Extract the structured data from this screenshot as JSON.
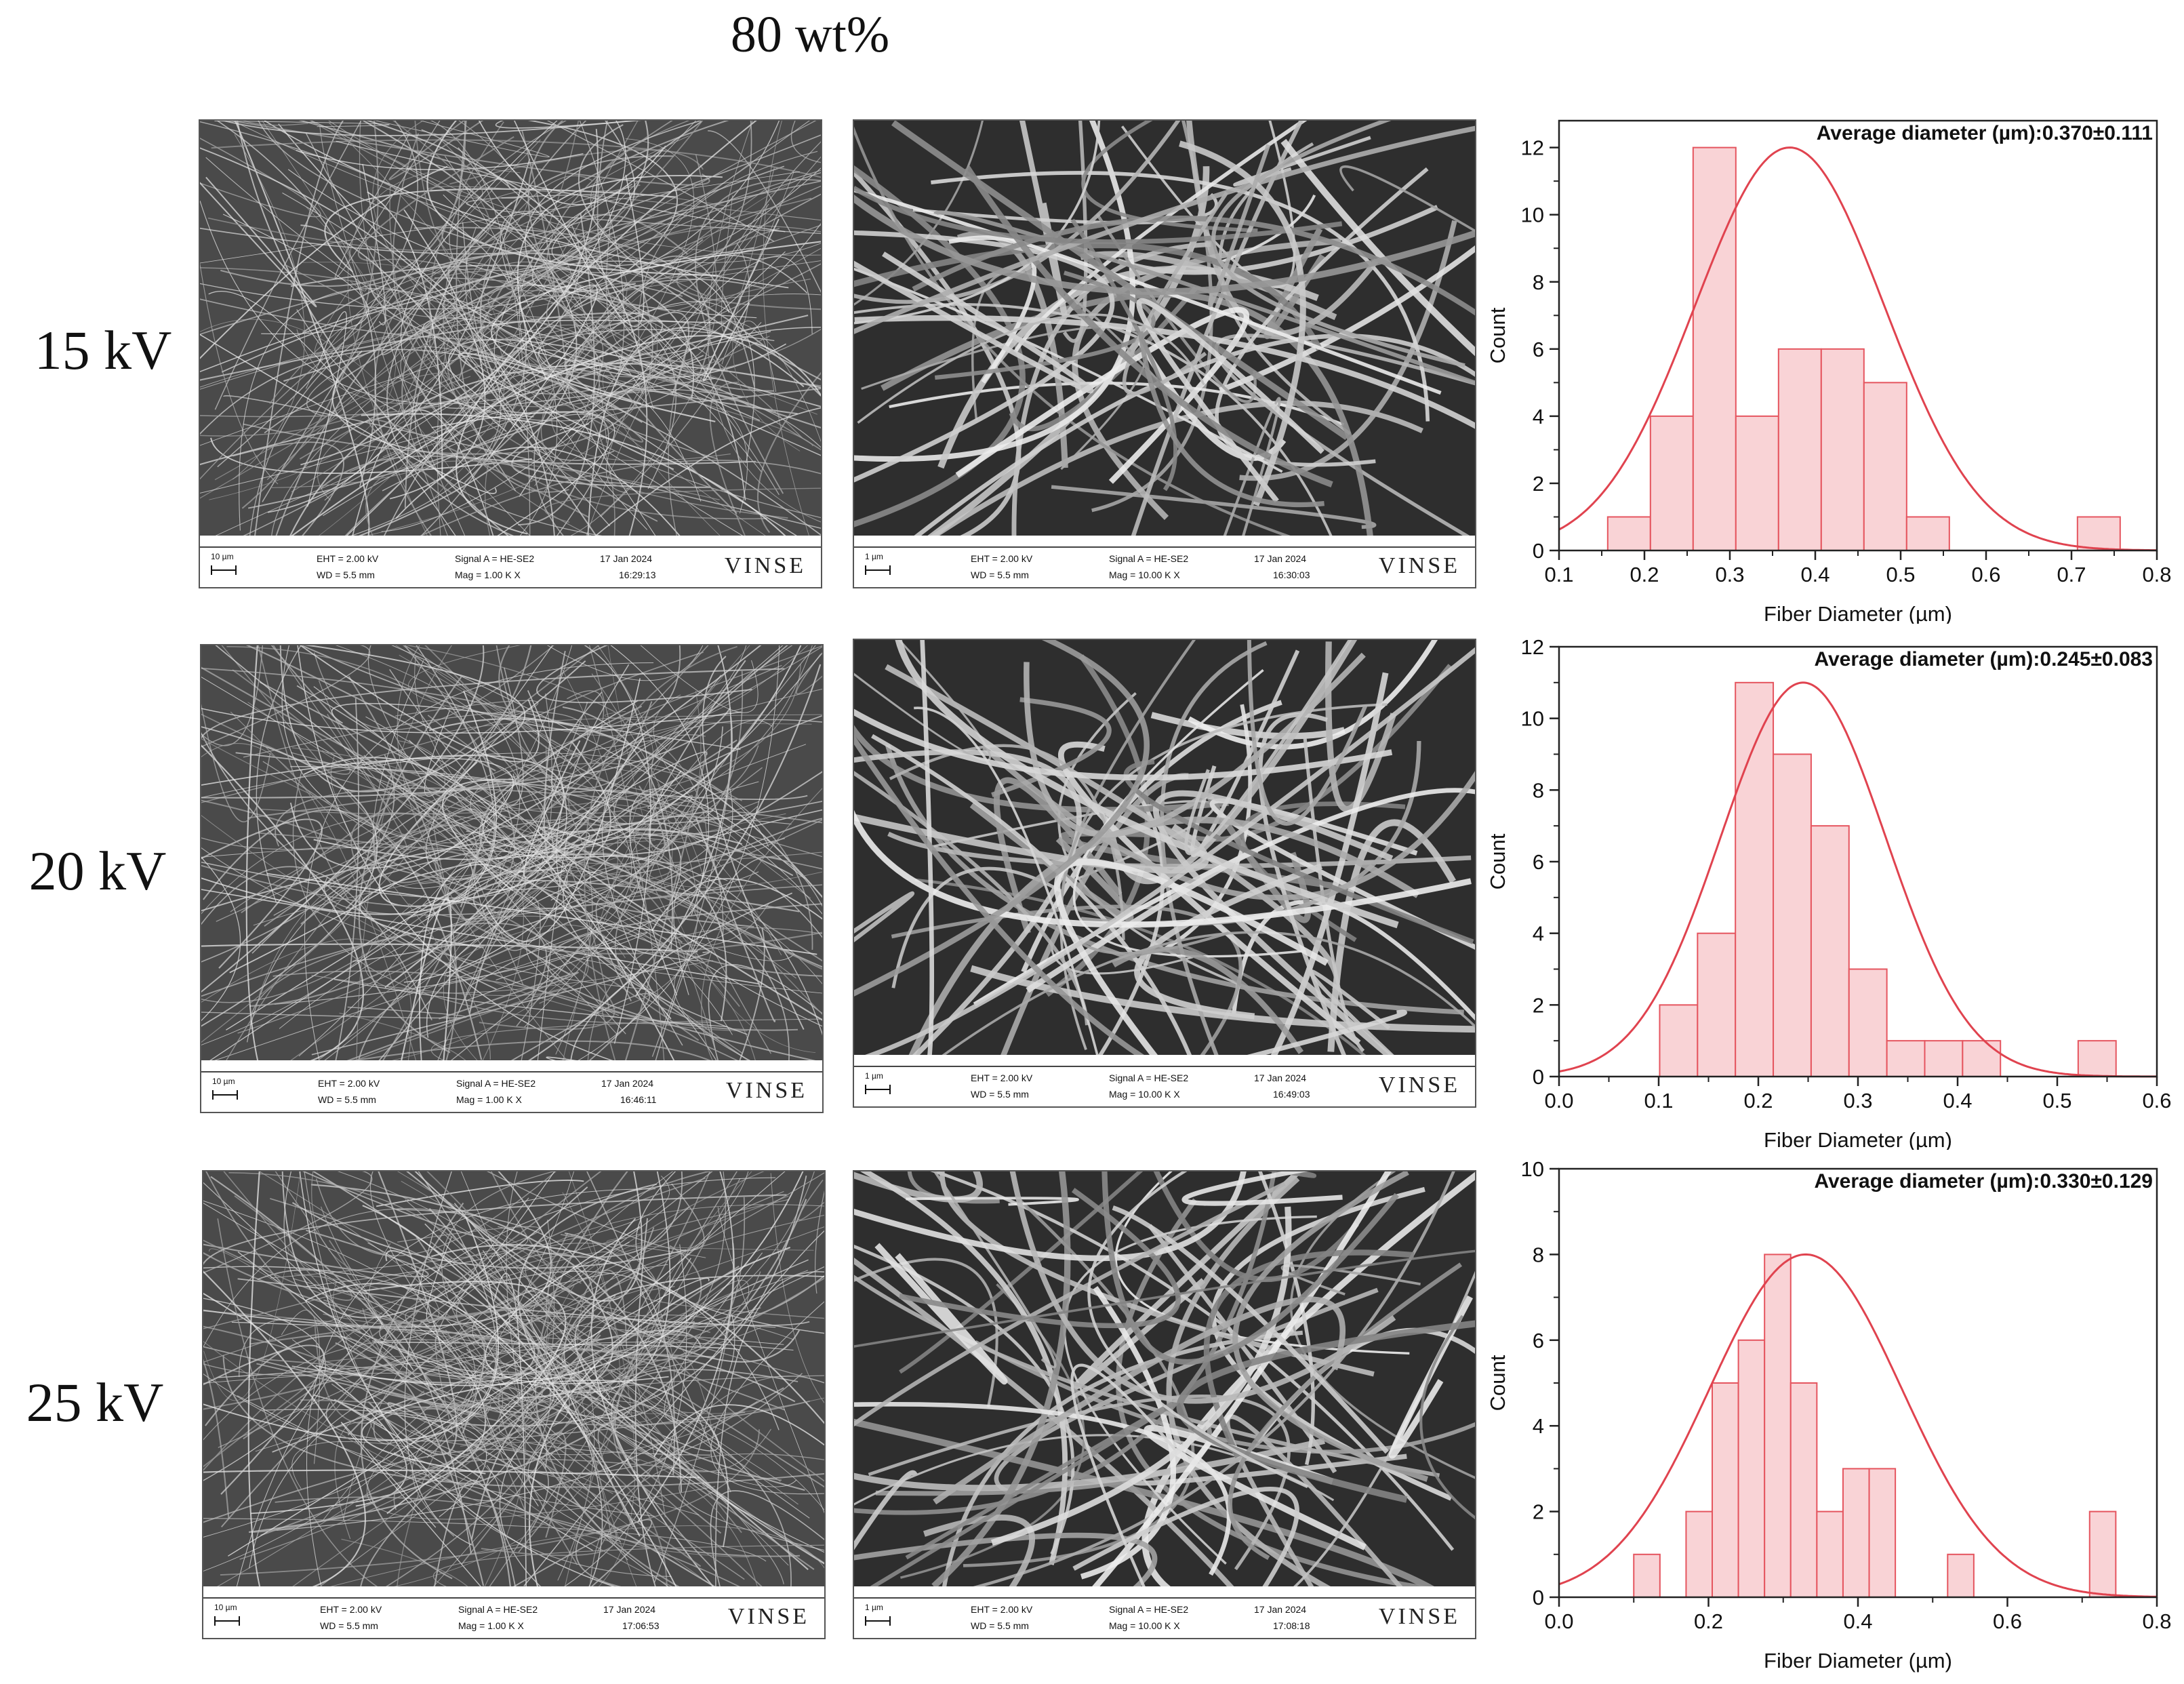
{
  "figure": {
    "title": "80 wt%",
    "rows": [
      {
        "voltage_label": "15 kV",
        "sem_low": {
          "scale": "10 µm",
          "eht": "EHT = 2.00 kV",
          "wd": "WD = 5.5 mm",
          "signal": "Signal A = HE-SE2",
          "mag": "Mag =   1.00 K X",
          "date": "17 Jan 2024",
          "time": "16:29:13",
          "logo": "VINSE"
        },
        "sem_high": {
          "scale": "1 µm",
          "eht": "EHT = 2.00 kV",
          "wd": "WD = 5.5 mm",
          "signal": "Signal A = HE-SE2",
          "mag": "Mag =  10.00 K X",
          "date": "17 Jan 2024",
          "time": "16:30:03",
          "logo": "VINSE"
        }
      },
      {
        "voltage_label": "20 kV",
        "sem_low": {
          "scale": "10 µm",
          "eht": "EHT = 2.00 kV",
          "wd": "WD = 5.5 mm",
          "signal": "Signal A = HE-SE2",
          "mag": "Mag =   1.00 K X",
          "date": "17 Jan 2024",
          "time": "16:46:11",
          "logo": "VINSE"
        },
        "sem_high": {
          "scale": "1 µm",
          "eht": "EHT = 2.00 kV",
          "wd": "WD = 5.5 mm",
          "signal": "Signal A = HE-SE2",
          "mag": "Mag =  10.00 K X",
          "date": "17 Jan 2024",
          "time": "16:49:03",
          "logo": "VINSE"
        }
      },
      {
        "voltage_label": "25 kV",
        "sem_low": {
          "scale": "10 µm",
          "eht": "EHT = 2.00 kV",
          "wd": "WD = 5.5 mm",
          "signal": "Signal A = HE-SE2",
          "mag": "Mag =   1.00 K X",
          "date": "17 Jan 2024",
          "time": "17:06:53",
          "logo": "VINSE"
        },
        "sem_high": {
          "scale": "1 µm",
          "eht": "EHT = 2.00 kV",
          "wd": "WD = 5.5 mm",
          "signal": "Signal A = HE-SE2",
          "mag": "Mag =  10.00 K X",
          "date": "17 Jan 2024",
          "time": "17:08:18",
          "logo": "VINSE"
        }
      }
    ]
  },
  "colors": {
    "bar_fill": "#f9d3d6",
    "bar_stroke": "#e5555f",
    "fit_line": "#e0434f",
    "axis": "#222222"
  },
  "chart_data": [
    {
      "type": "bar",
      "annotation": "Average diameter (µm):0.370±0.111",
      "xlabel": "Fiber Diameter (µm)",
      "ylabel": "Count",
      "xlim": [
        0.1,
        0.8
      ],
      "ylim": [
        0,
        12.8
      ],
      "xticks": [
        0.1,
        0.2,
        0.3,
        0.4,
        0.5,
        0.6,
        0.7,
        0.8
      ],
      "yticks": [
        0,
        2,
        4,
        6,
        8,
        10,
        12
      ],
      "bin_width": 0.05,
      "bin_starts": [
        0.157,
        0.207,
        0.257,
        0.307,
        0.357,
        0.407,
        0.457,
        0.507,
        0.707
      ],
      "counts": [
        1,
        4,
        12,
        4,
        6,
        6,
        5,
        1,
        1
      ],
      "fit": {
        "mean": 0.37,
        "sd": 0.111,
        "peak": 12
      }
    },
    {
      "type": "bar",
      "annotation": "Average diameter (µm):0.245±0.083",
      "xlabel": "Fiber Diameter (µm)",
      "ylabel": "Count",
      "xlim": [
        0.0,
        0.6
      ],
      "ylim": [
        0,
        12
      ],
      "xticks": [
        0.0,
        0.1,
        0.2,
        0.3,
        0.4,
        0.5,
        0.6
      ],
      "yticks": [
        0,
        2,
        4,
        6,
        8,
        10,
        12
      ],
      "bin_width": 0.038,
      "bin_starts": [
        0.101,
        0.139,
        0.177,
        0.215,
        0.253,
        0.291,
        0.329,
        0.367,
        0.405,
        0.521
      ],
      "counts": [
        2,
        4,
        11,
        9,
        7,
        3,
        1,
        1,
        1,
        1
      ],
      "fit": {
        "mean": 0.245,
        "sd": 0.083,
        "peak": 11
      }
    },
    {
      "type": "bar",
      "annotation": "Average diameter (µm):0.330±0.129",
      "xlabel": "Fiber Diameter (µm)",
      "ylabel": "Count",
      "xlim": [
        0.0,
        0.8
      ],
      "ylim": [
        0,
        10
      ],
      "xticks": [
        0.0,
        0.2,
        0.4,
        0.6,
        0.8
      ],
      "yticks": [
        0,
        2,
        4,
        6,
        8,
        10
      ],
      "bin_width": 0.035,
      "bin_starts": [
        0.1,
        0.17,
        0.205,
        0.24,
        0.275,
        0.31,
        0.345,
        0.38,
        0.415,
        0.52,
        0.71
      ],
      "counts": [
        1,
        2,
        5,
        6,
        8,
        5,
        2,
        3,
        3,
        1,
        2
      ],
      "fit": {
        "mean": 0.33,
        "sd": 0.129,
        "peak": 8
      }
    }
  ]
}
